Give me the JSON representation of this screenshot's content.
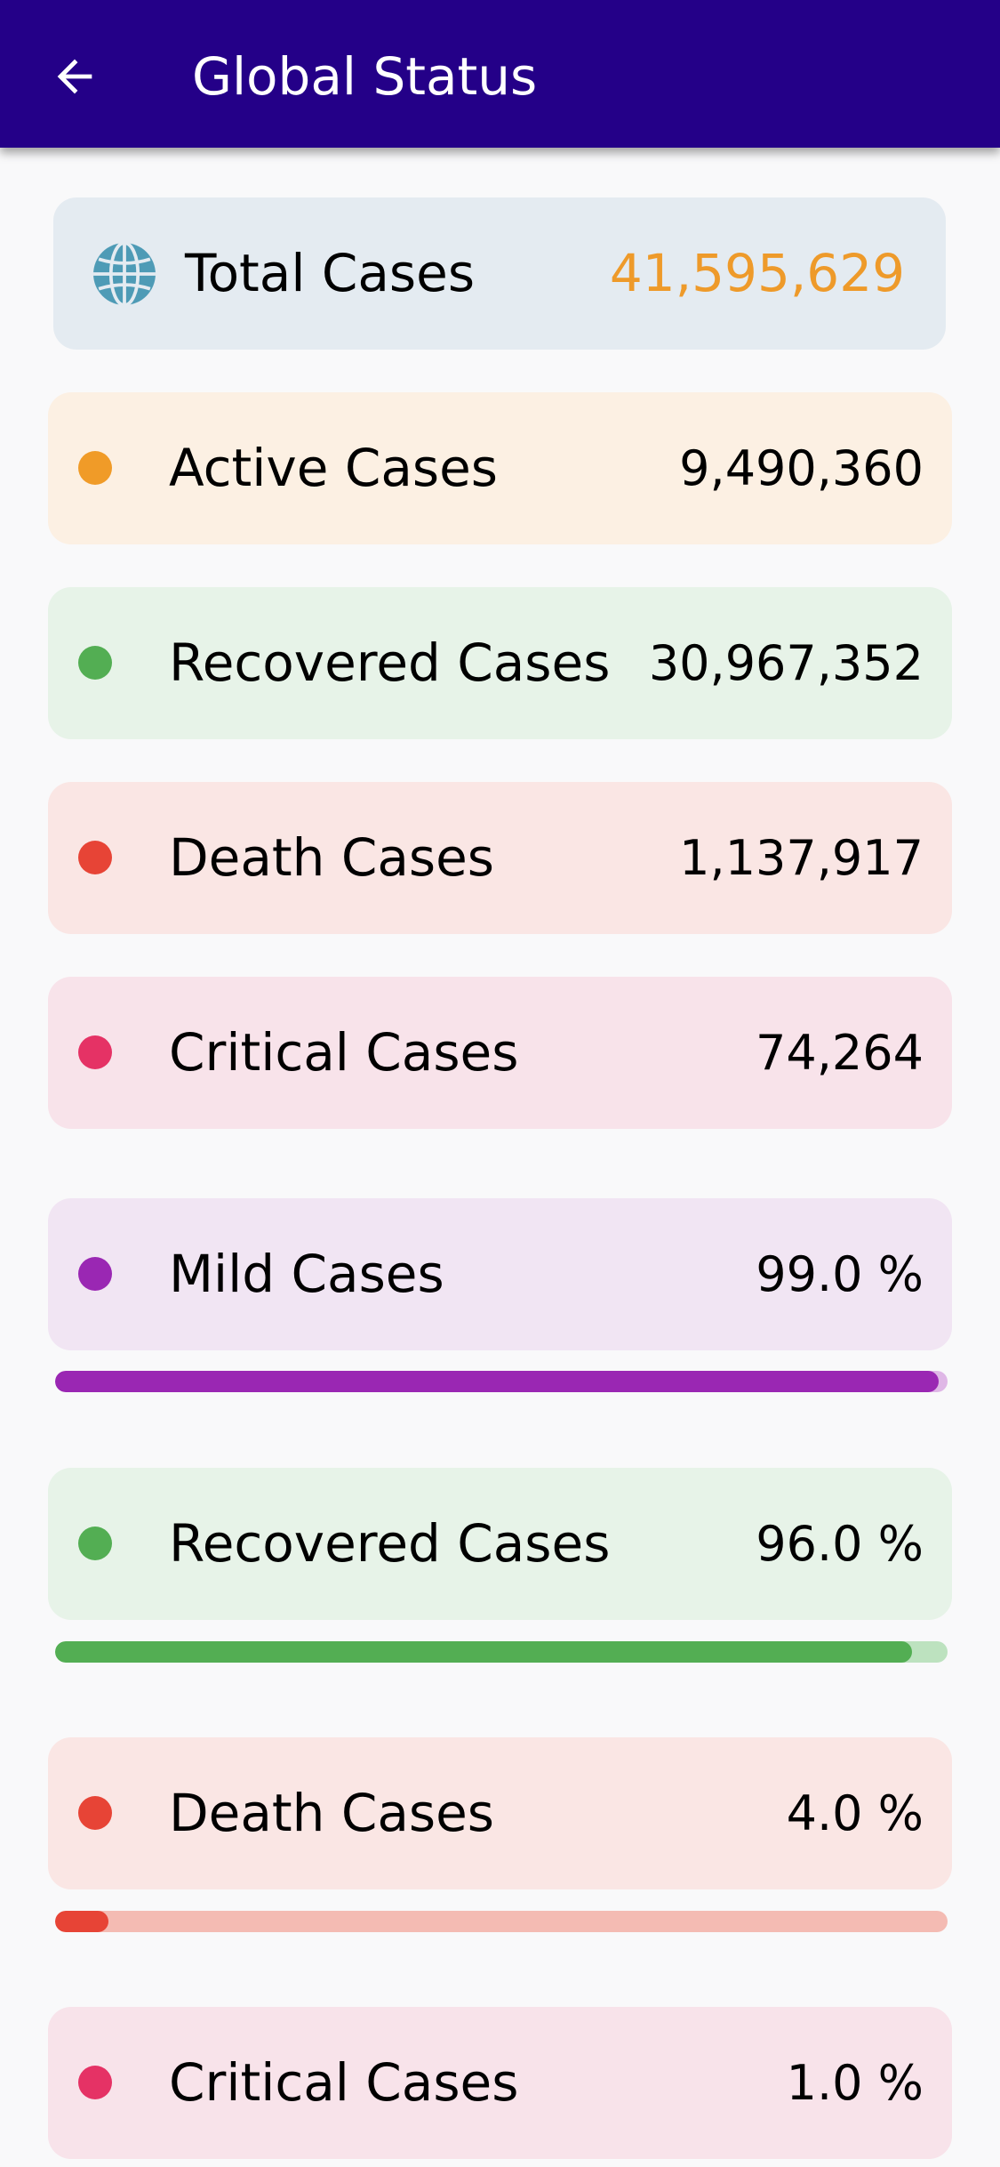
{
  "appbar": {
    "title": "Global Status",
    "back_icon": "arrow-left-icon"
  },
  "total": {
    "label": "Total Cases",
    "value": "41,595,629",
    "icon": "globe-icon",
    "color": "#ee9a2a"
  },
  "counts": [
    {
      "label": "Active Cases",
      "value": "9,490,360",
      "dot": "#f09b28",
      "bg": "#fcf0e3"
    },
    {
      "label": "Recovered Cases",
      "value": "30,967,352",
      "dot": "#53ae53",
      "bg": "#e7f3e8"
    },
    {
      "label": "Death Cases",
      "value": "1,137,917",
      "dot": "#e74436",
      "bg": "#fae6e4"
    },
    {
      "label": "Critical Cases",
      "value": "74,264",
      "dot": "#e53265",
      "bg": "#f8e3ea"
    }
  ],
  "percentages": [
    {
      "label": "Mild Cases",
      "value": "99.0 %",
      "percent": 99.0,
      "dot": "#9a27b3",
      "bg": "#f1e5f3",
      "track": "#dfb7e6"
    },
    {
      "label": "Recovered Cases",
      "value": "96.0 %",
      "percent": 96.0,
      "dot": "#53ae53",
      "bg": "#e7f3e8",
      "track": "#bde2bf"
    },
    {
      "label": "Death Cases",
      "value": "4.0 %",
      "percent": 4.0,
      "dot": "#e74436",
      "bg": "#fae6e4",
      "track": "#f4bbb3"
    },
    {
      "label": "Critical Cases",
      "value": "1.0 %",
      "percent": 1.0,
      "dot": "#e53265",
      "bg": "#f8e3ea",
      "track": "#f4b9cb"
    }
  ]
}
